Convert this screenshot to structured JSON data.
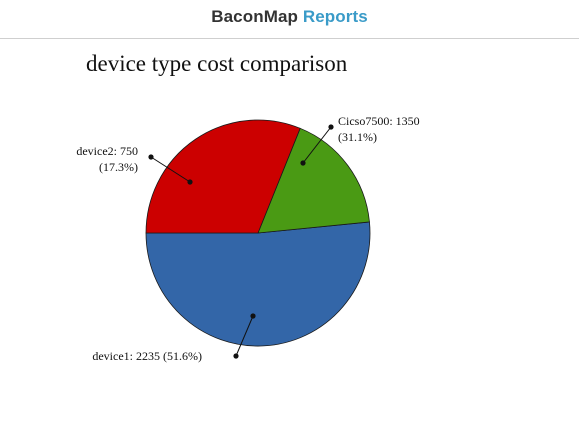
{
  "header": {
    "brand": "BaconMap",
    "section": "Reports",
    "brand_color": "#333333",
    "accent_color": "#3a9bc8"
  },
  "chart_data": {
    "type": "pie",
    "title": "device type cost comparison",
    "slices": [
      {
        "label": "device1",
        "value": 2235,
        "percent": "51.6%",
        "color": "#3366a8",
        "label_lines": [
          "device1: 2235 (51.6%)"
        ]
      },
      {
        "label": "device2",
        "value": 750,
        "percent": "17.3%",
        "color": "#4a9a14",
        "label_lines": [
          "device2: 750",
          "(17.3%)"
        ]
      },
      {
        "label": "Cicso7500",
        "value": 1350,
        "percent": "31.1%",
        "color": "#cc0000",
        "label_lines": [
          "Cicso7500: 1350",
          "(31.1%)"
        ]
      }
    ]
  }
}
